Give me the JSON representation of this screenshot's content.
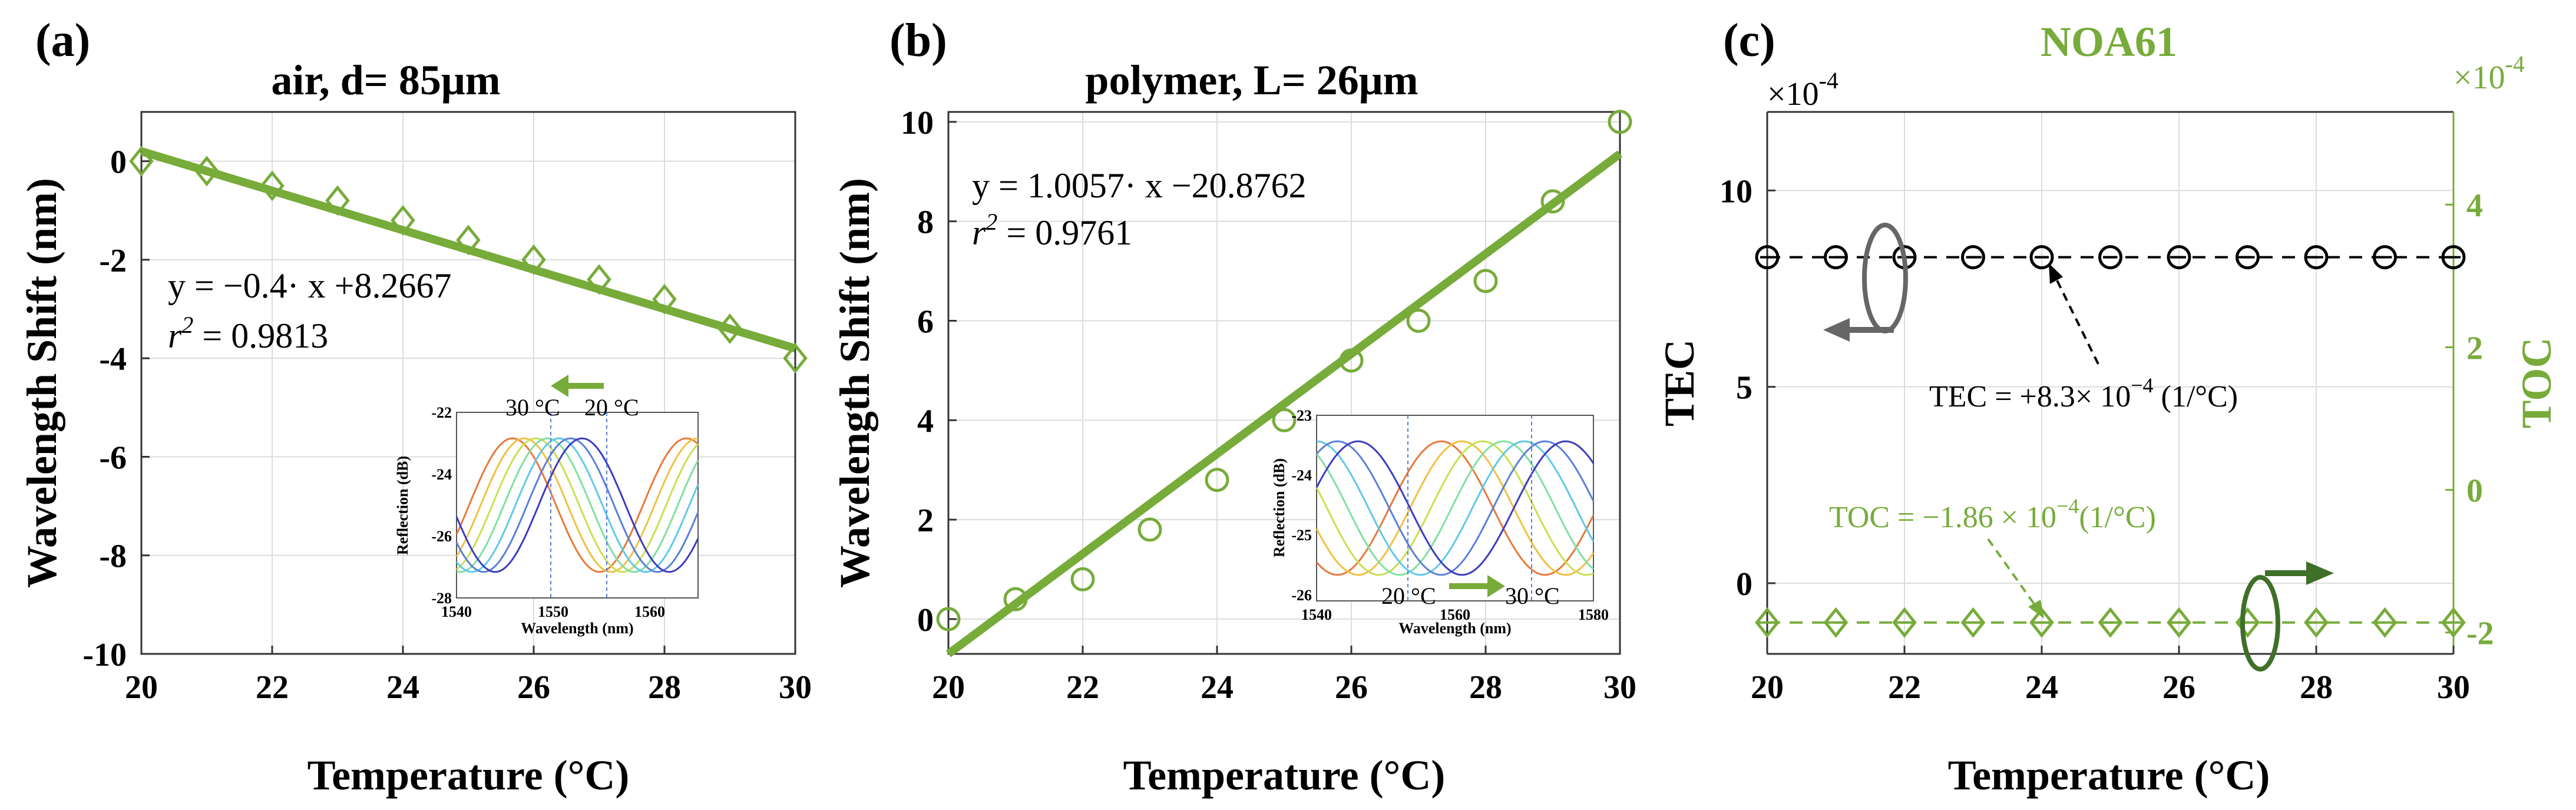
{
  "colors": {
    "green": "#77ab3a",
    "dark_green": "#3f6f28",
    "black": "#000000",
    "grid": "#dcdcdc",
    "gray": "#666666"
  },
  "chart_data": [
    {
      "id": "a",
      "type": "scatter",
      "panel_label": "(a)",
      "title": "air, d= 85μm",
      "xlabel": "Temperature (°C)",
      "ylabel": "Wavelength Shift (nm)",
      "xlim": [
        20,
        30
      ],
      "ylim": [
        -10,
        1
      ],
      "xticks": [
        20,
        22,
        24,
        26,
        28,
        30
      ],
      "yticks": [
        -10,
        -8,
        -6,
        -4,
        -2,
        0
      ],
      "x": [
        20,
        21,
        22,
        23,
        24,
        25,
        26,
        27,
        28,
        29,
        30
      ],
      "y": [
        0,
        -0.2,
        -0.5,
        -0.8,
        -1.2,
        -1.6,
        -2.0,
        -2.4,
        -2.8,
        -3.4,
        -4.0
      ],
      "marker": "diamond",
      "fit": {
        "slope": -0.4,
        "intercept": 8.2667,
        "shift_x": 20
      },
      "equation": "y = −0.4· x +8.2667",
      "r2_prefix": "r",
      "r2_value": " = 0.9813",
      "inset": {
        "xlabel": "Wavelength (nm)",
        "ylabel": "Reflection (dB)",
        "xticks": [
          1540,
          1550,
          1560
        ],
        "yticks": [
          -22,
          -24,
          -26,
          -28
        ],
        "xlim": [
          1540,
          1565
        ],
        "ylim": [
          -28,
          -22
        ],
        "label_left": "30 °C",
        "label_right": "20 °C",
        "arrow": "left"
      }
    },
    {
      "id": "b",
      "type": "scatter",
      "panel_label": "(b)",
      "title": "polymer, L= 26μm",
      "xlabel": "Temperature (°C)",
      "ylabel": "Wavelength Shift (nm)",
      "xlim": [
        20,
        30
      ],
      "ylim": [
        -0.7,
        10.2
      ],
      "xticks": [
        20,
        22,
        24,
        26,
        28,
        30
      ],
      "yticks": [
        0,
        2,
        4,
        6,
        8,
        10
      ],
      "x": [
        20,
        21,
        22,
        23,
        24,
        25,
        26,
        27,
        28,
        29,
        30
      ],
      "y": [
        0,
        0.4,
        0.8,
        1.8,
        2.8,
        4.0,
        5.2,
        6.0,
        6.8,
        8.4,
        10.0
      ],
      "marker": "circle",
      "fit": {
        "slope": 1.0057,
        "intercept": -20.8762,
        "shift_x": 20
      },
      "equation": "y = 1.0057· x −20.8762",
      "r2_prefix": "r",
      "r2_value": " = 0.9761",
      "inset": {
        "xlabel": "Wavelength (nm)",
        "ylabel": "Reflection (dB)",
        "xticks": [
          1540,
          1560,
          1580
        ],
        "yticks": [
          -23,
          -24,
          -25,
          -26
        ],
        "xlim": [
          1540,
          1580
        ],
        "ylim": [
          -26.1,
          -23
        ],
        "label_left": "20 °C",
        "label_right": "30 °C",
        "arrow": "right"
      }
    },
    {
      "id": "c",
      "type": "scatter",
      "panel_label": "(c)",
      "title": "NOA61",
      "xlabel": "Temperature (°C)",
      "ylabel_left": "TEC",
      "ylabel_right": "TOC",
      "left_multiplier_base": "×10",
      "left_multiplier_exp": "-4",
      "right_multiplier_base": "×10",
      "right_multiplier_exp": "-4",
      "xlim": [
        20,
        30
      ],
      "ylim_left": [
        -1.8,
        12
      ],
      "ylim_right": [
        -2.3,
        5.3
      ],
      "xticks": [
        20,
        22,
        24,
        26,
        28,
        30
      ],
      "yticks_left": [
        0,
        5,
        10
      ],
      "yticks_right": [
        -2,
        0,
        2,
        4
      ],
      "x": [
        20,
        21,
        22,
        23,
        24,
        25,
        26,
        27,
        28,
        29,
        30
      ],
      "series": [
        {
          "name": "TEC",
          "axis": "left",
          "values": [
            8.3,
            8.3,
            8.3,
            8.3,
            8.3,
            8.3,
            8.3,
            8.3,
            8.3,
            8.3,
            8.3
          ]
        },
        {
          "name": "TOC",
          "axis": "right",
          "values": [
            -1.86,
            -1.86,
            -1.86,
            -1.86,
            -1.86,
            -1.86,
            -1.86,
            -1.86,
            -1.86,
            -1.86,
            -1.86
          ]
        }
      ],
      "tec_annotation": "TEC = +8.3× 10",
      "tec_annotation_exp": "−4",
      "tec_annotation_unit": " (1/°C)",
      "toc_annotation": "TOC = −1.86 × 10",
      "toc_annotation_exp": "−4",
      "toc_annotation_unit": "(1/°C)"
    }
  ]
}
